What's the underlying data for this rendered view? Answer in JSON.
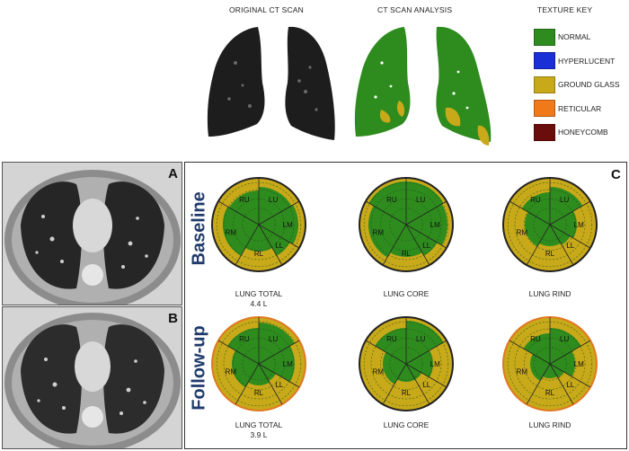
{
  "header": {
    "original_ct_title": "ORIGINAL CT SCAN",
    "analysis_title": "CT SCAN ANALYSIS",
    "texture_key_title": "TEXTURE KEY"
  },
  "legend": [
    {
      "label": "NORMAL",
      "color": "#2e8b1e"
    },
    {
      "label": "HYPERLUCENT",
      "color": "#1a2fd6"
    },
    {
      "label": "GROUND GLASS",
      "color": "#c7a91a"
    },
    {
      "label": "RETICULAR",
      "color": "#f07a1a"
    },
    {
      "label": "HONEYCOMB",
      "color": "#6b0d0d"
    }
  ],
  "panels": {
    "a": "A",
    "b": "B",
    "c": "C"
  },
  "rows": {
    "baseline": "Baseline",
    "followup": "Follow-up"
  },
  "captions": {
    "baseline_total": "LUNG TOTAL",
    "baseline_total_vol": "4.4 L",
    "baseline_core": "LUNG CORE",
    "baseline_rind": "LUNG RIND",
    "followup_total": "LUNG TOTAL",
    "followup_total_vol": "3.9 L",
    "followup_core": "LUNG CORE",
    "followup_rind": "LUNG RIND"
  },
  "segment_labels": [
    "RU",
    "LU",
    "LM",
    "LL",
    "RL",
    "RM"
  ],
  "colors": {
    "normal": "#2e8b1e",
    "ground_glass": "#c7a91a",
    "reticular": "#e07820",
    "outline": "#222222"
  }
}
